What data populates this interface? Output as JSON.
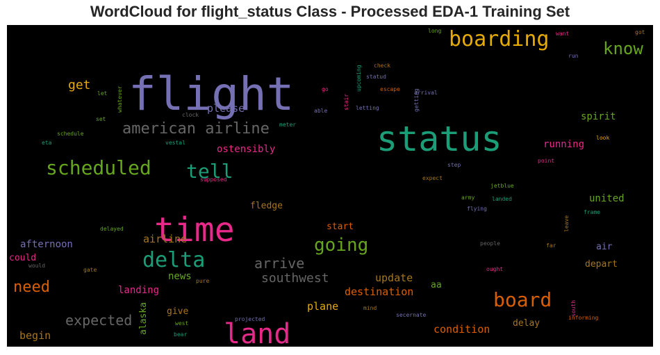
{
  "chart_data": {
    "type": "wordcloud",
    "title": "WordCloud for flight_status Class - Processed EDA-1 Training Set",
    "background": "#000000",
    "colormap": [
      "#1b9e77",
      "#d95f02",
      "#7570b3",
      "#e7298a",
      "#66a61e",
      "#e6ab02",
      "#a6761d",
      "#666666"
    ],
    "words": [
      {
        "text": "flight",
        "color": "#7570b3"
      },
      {
        "text": "status",
        "color": "#1b9e77"
      },
      {
        "text": "time",
        "color": "#e7298a"
      },
      {
        "text": "land",
        "color": "#e7298a"
      },
      {
        "text": "boarding",
        "color": "#e6ab02"
      },
      {
        "text": "scheduled",
        "color": "#66a61e"
      },
      {
        "text": "delta",
        "color": "#1b9e77"
      },
      {
        "text": "tell",
        "color": "#1b9e77"
      },
      {
        "text": "board",
        "color": "#d95f02"
      },
      {
        "text": "american airline",
        "color": "#666666"
      },
      {
        "text": "going",
        "color": "#66a61e"
      },
      {
        "text": "know",
        "color": "#66a61e"
      },
      {
        "text": "need",
        "color": "#d95f02"
      },
      {
        "text": "expected",
        "color": "#666666"
      },
      {
        "text": "arrive",
        "color": "#666666"
      },
      {
        "text": "southwest",
        "color": "#666666"
      },
      {
        "text": "get",
        "color": "#e6ab02"
      },
      {
        "text": "please",
        "color": "#7570b3"
      },
      {
        "text": "update",
        "color": "#a6761d"
      },
      {
        "text": "condition",
        "color": "#d95f02"
      },
      {
        "text": "airline",
        "color": "#a6761d"
      },
      {
        "text": "destination",
        "color": "#d95f02"
      },
      {
        "text": "spirit",
        "color": "#66a61e"
      },
      {
        "text": "running",
        "color": "#e7298a"
      },
      {
        "text": "ostensibly",
        "color": "#e7298a"
      },
      {
        "text": "united",
        "color": "#66a61e"
      },
      {
        "text": "plane",
        "color": "#e6ab02"
      },
      {
        "text": "afternoon",
        "color": "#7570b3"
      },
      {
        "text": "begin",
        "color": "#a6761d"
      },
      {
        "text": "news",
        "color": "#66a61e"
      },
      {
        "text": "landing",
        "color": "#e7298a"
      },
      {
        "text": "could",
        "color": "#e7298a"
      },
      {
        "text": "delay",
        "color": "#a6761d"
      },
      {
        "text": "depart",
        "color": "#a6761d"
      },
      {
        "text": "air",
        "color": "#7570b3"
      },
      {
        "text": "start",
        "color": "#d95f02"
      },
      {
        "text": "fledge",
        "color": "#a6761d"
      },
      {
        "text": "give",
        "color": "#a6761d"
      },
      {
        "text": "alaska",
        "color": "#66a61e"
      },
      {
        "text": "aa",
        "color": "#66a61e"
      },
      {
        "text": "upcoming",
        "color": "#1b9e77"
      },
      {
        "text": "check",
        "color": "#a6761d"
      },
      {
        "text": "statud",
        "color": "#7570b3"
      },
      {
        "text": "escape",
        "color": "#d95f02"
      },
      {
        "text": "arrival",
        "color": "#7570b3"
      },
      {
        "text": "go",
        "color": "#e7298a"
      },
      {
        "text": "stair",
        "color": "#e7298a"
      },
      {
        "text": "able",
        "color": "#7570b3"
      },
      {
        "text": "letting",
        "color": "#7570b3"
      },
      {
        "text": "getting",
        "color": "#7570b3"
      },
      {
        "text": "long",
        "color": "#66a61e"
      },
      {
        "text": "want",
        "color": "#e7298a"
      },
      {
        "text": "got",
        "color": "#a6761d"
      },
      {
        "text": "run",
        "color": "#7570b3"
      },
      {
        "text": "let",
        "color": "#66a61e"
      },
      {
        "text": "whatever",
        "color": "#66a61e"
      },
      {
        "text": "set",
        "color": "#66a61e"
      },
      {
        "text": "clock",
        "color": "#666666"
      },
      {
        "text": "meter",
        "color": "#1b9e77"
      },
      {
        "text": "schedule",
        "color": "#66a61e"
      },
      {
        "text": "eta",
        "color": "#1b9e77"
      },
      {
        "text": "vestal",
        "color": "#1b9e77"
      },
      {
        "text": "look",
        "color": "#e6ab02"
      },
      {
        "text": "point",
        "color": "#e7298a"
      },
      {
        "text": "step",
        "color": "#7570b3"
      },
      {
        "text": "supposed",
        "color": "#e7298a"
      },
      {
        "text": "expect",
        "color": "#a6761d"
      },
      {
        "text": "jetblue",
        "color": "#66a61e"
      },
      {
        "text": "army",
        "color": "#66a61e"
      },
      {
        "text": "landed",
        "color": "#1b9e77"
      },
      {
        "text": "flying",
        "color": "#7570b3"
      },
      {
        "text": "frame",
        "color": "#1b9e77"
      },
      {
        "text": "leave",
        "color": "#a6761d"
      },
      {
        "text": "delayed",
        "color": "#66a61e"
      },
      {
        "text": "people",
        "color": "#666666"
      },
      {
        "text": "far",
        "color": "#a6761d"
      },
      {
        "text": "ought",
        "color": "#e7298a"
      },
      {
        "text": "would",
        "color": "#666666"
      },
      {
        "text": "gate",
        "color": "#a6761d"
      },
      {
        "text": "pure",
        "color": "#a6761d"
      },
      {
        "text": "mind",
        "color": "#a6761d"
      },
      {
        "text": "south",
        "color": "#e7298a"
      },
      {
        "text": "informing",
        "color": "#d95f02"
      },
      {
        "text": "projected",
        "color": "#7570b3"
      },
      {
        "text": "secernate",
        "color": "#7570b3"
      },
      {
        "text": "west",
        "color": "#66a61e"
      },
      {
        "text": "bear",
        "color": "#1b9e77"
      }
    ]
  }
}
